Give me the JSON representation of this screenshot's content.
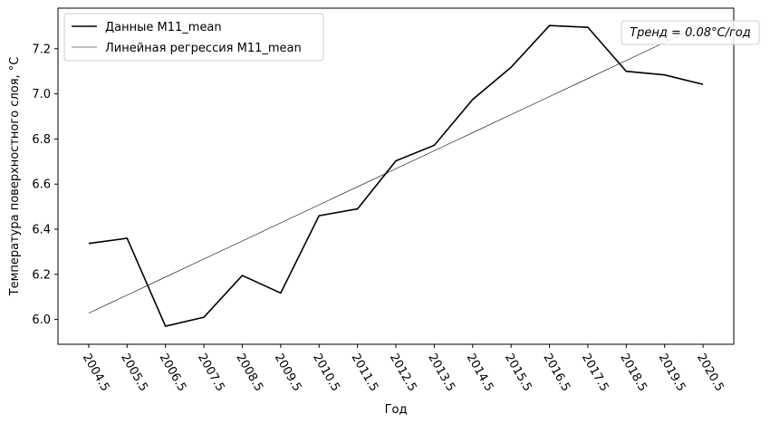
{
  "chart_data": {
    "type": "line",
    "title": "",
    "xlabel": "Год",
    "ylabel": "Температура поверхностного слоя, °C",
    "x": [
      2004.5,
      2005.5,
      2006.5,
      2007.5,
      2008.5,
      2009.5,
      2010.5,
      2011.5,
      2012.5,
      2013.5,
      2014.5,
      2015.5,
      2016.5,
      2017.5,
      2018.5,
      2019.5,
      2020.5
    ],
    "x_tick_labels": [
      "2004.5",
      "2005.5",
      "2006.5",
      "2007.5",
      "2008.5",
      "2009.5",
      "2010.5",
      "2011.5",
      "2012.5",
      "2013.5",
      "2014.5",
      "2015.5",
      "2016.5",
      "2017.5",
      "2018.5",
      "2019.5",
      "2020.5"
    ],
    "y_ticks": [
      6.0,
      6.2,
      6.4,
      6.6,
      6.8,
      7.0,
      7.2
    ],
    "y_tick_labels": [
      "6.0",
      "6.2",
      "6.4",
      "6.6",
      "6.8",
      "7.0",
      "7.2"
    ],
    "xlim": [
      2003.7,
      2021.3
    ],
    "ylim": [
      5.89,
      7.38
    ],
    "series": [
      {
        "name": "Данные M11_mean",
        "color": "#000000",
        "style": "solid-thick",
        "values": [
          6.337,
          6.36,
          5.97,
          6.01,
          6.195,
          6.117,
          6.46,
          6.49,
          6.703,
          6.772,
          6.975,
          7.118,
          7.303,
          7.295,
          7.1,
          7.084,
          7.042
        ]
      },
      {
        "name": "Линейная регрессия M11_mean",
        "color": "#000000",
        "style": "solid-thin",
        "values": [
          6.028,
          6.108,
          6.188,
          6.268,
          6.348,
          6.428,
          6.508,
          6.588,
          6.668,
          6.748,
          6.828,
          6.908,
          6.988,
          7.068,
          7.148,
          7.228,
          7.308
        ]
      }
    ],
    "legend": {
      "position": "top-left",
      "entries": [
        "Данные M11_mean",
        "Линейная регрессия M11_mean"
      ]
    },
    "annotation": {
      "text": "Тренд = 0.08°C/год",
      "position": "top-right"
    },
    "grid": false
  }
}
